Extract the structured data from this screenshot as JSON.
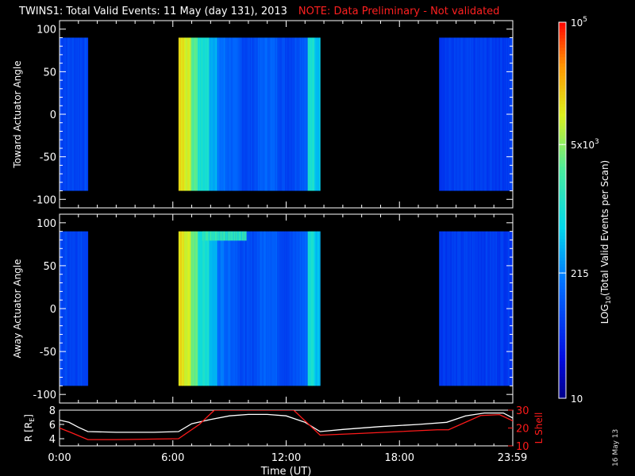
{
  "title": {
    "main": "TWINS1: Total Valid Events: 11 May (day 131), 2013",
    "note": "NOTE: Data Preliminary - Not validated"
  },
  "stamp": "16 May 13",
  "chart_data": [
    {
      "type": "heatmap",
      "name": "toward",
      "ylabel": "Toward Actuator Angle",
      "yticks": [
        100,
        50,
        0,
        -50,
        -100
      ],
      "ylim": [
        -110,
        110
      ],
      "data_ylim": [
        -90,
        90
      ],
      "xlim_hours": [
        0,
        24
      ],
      "data_blocks": [
        {
          "start_hours": 0.0,
          "end_hours": 1.5,
          "level": 0.22
        },
        {
          "start_hours": 6.3,
          "end_hours": 13.8,
          "profile": "decay"
        },
        {
          "start_hours": 20.1,
          "end_hours": 24.0,
          "level": 0.2
        }
      ]
    },
    {
      "type": "heatmap",
      "name": "away",
      "ylabel": "Away Actuator Angle",
      "yticks": [
        100,
        50,
        0,
        -50,
        -100
      ],
      "ylim": [
        -110,
        110
      ],
      "data_ylim": [
        -90,
        90
      ],
      "xlim_hours": [
        0,
        24
      ],
      "data_blocks": [
        {
          "start_hours": 0.0,
          "end_hours": 1.5,
          "level": 0.22
        },
        {
          "start_hours": 6.3,
          "end_hours": 13.8,
          "profile": "decay"
        },
        {
          "start_hours": 20.1,
          "end_hours": 24.0,
          "level": 0.2
        }
      ]
    },
    {
      "type": "line",
      "name": "orbit",
      "ylabel_left": "R [R",
      "ylabel_left_sub": "E",
      "ylabel_left_end": "]",
      "ylabel_right": "L Shell",
      "ylim_left": [
        3,
        8
      ],
      "yticks_left": [
        4,
        6,
        8
      ],
      "ylim_right": [
        10,
        30
      ],
      "yticks_right": [
        10,
        20,
        30
      ],
      "xlabel": "Time (UT)",
      "xticks": [
        {
          "hours": 0,
          "label": "0:00"
        },
        {
          "hours": 6,
          "label": "6:00"
        },
        {
          "hours": 12,
          "label": "12:00"
        },
        {
          "hours": 18,
          "label": "18:00"
        },
        {
          "hours": 23.98,
          "label": "23:59"
        }
      ],
      "series": [
        {
          "axis": "left",
          "color": "#ffffff",
          "x": [
            0,
            0.5,
            1.0,
            1.5,
            3.0,
            5.0,
            6.3,
            7.0,
            8.0,
            9.0,
            10.0,
            11.0,
            12.0,
            13.0,
            13.8,
            15.0,
            17.0,
            19.0,
            20.5,
            21.5,
            22.5,
            23.5,
            24.0
          ],
          "y": [
            6.6,
            6.3,
            5.6,
            5.0,
            4.9,
            4.9,
            5.0,
            6.1,
            6.7,
            7.2,
            7.4,
            7.4,
            7.2,
            6.3,
            5.0,
            5.3,
            5.7,
            6.0,
            6.3,
            7.2,
            7.6,
            7.6,
            6.9
          ]
        },
        {
          "axis": "right",
          "color": "#ff1a1a",
          "x": [
            0,
            0.6,
            1.5,
            3.0,
            6.3,
            7.4,
            8.2,
            8.3,
            12.2,
            12.4,
            13.8,
            16.0,
            18.0,
            20.0,
            20.6,
            22.3,
            23.3,
            24.0
          ],
          "y": [
            20,
            17.5,
            13.5,
            13.5,
            14.0,
            22.0,
            30,
            30,
            30,
            30,
            16.0,
            17.0,
            18.0,
            19.0,
            19.0,
            27.0,
            27.5,
            24.0
          ]
        }
      ]
    },
    {
      "type": "colorbar",
      "name": "colorbar",
      "label": "LOG",
      "label_sub": "10",
      "label_rest": "(Total Valid Events per Scan)",
      "scale": "log",
      "range": [
        10,
        100000
      ],
      "ticks": [
        {
          "value": 10,
          "label": "10"
        },
        {
          "value": 215,
          "label": "215"
        },
        {
          "value": 5000,
          "label": "5x10",
          "sup": "3"
        },
        {
          "value": 100000,
          "label": "10",
          "sup": "5"
        }
      ]
    }
  ]
}
